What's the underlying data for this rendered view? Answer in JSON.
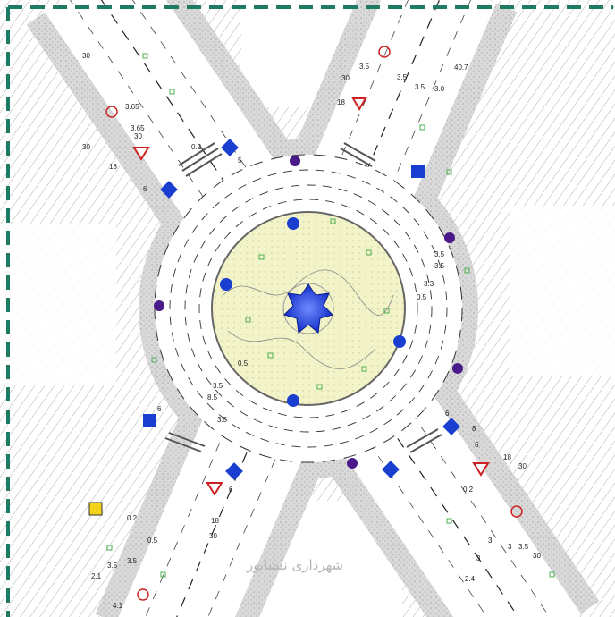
{
  "labels": [
    "30",
    "3.65",
    "3.65",
    "30",
    "30",
    "18",
    "6",
    "0.2",
    "5",
    "30",
    "18",
    "3.5",
    "3.5",
    "3.5",
    "3.0",
    "40.7",
    "3.5",
    "3.5",
    "3.3",
    "0.5",
    "0.5",
    "3.5",
    "8.5",
    "3.5",
    "6",
    "6",
    "0.2",
    "0.5",
    "18",
    "30",
    "3.5",
    "3.5",
    "2.1",
    "4.1",
    "0.2",
    "8",
    "6",
    "18",
    "30",
    "3",
    "3",
    "3",
    "3.5",
    "30",
    "2.4",
    "6"
  ],
  "watermark": "شهرداری نیشابور"
}
